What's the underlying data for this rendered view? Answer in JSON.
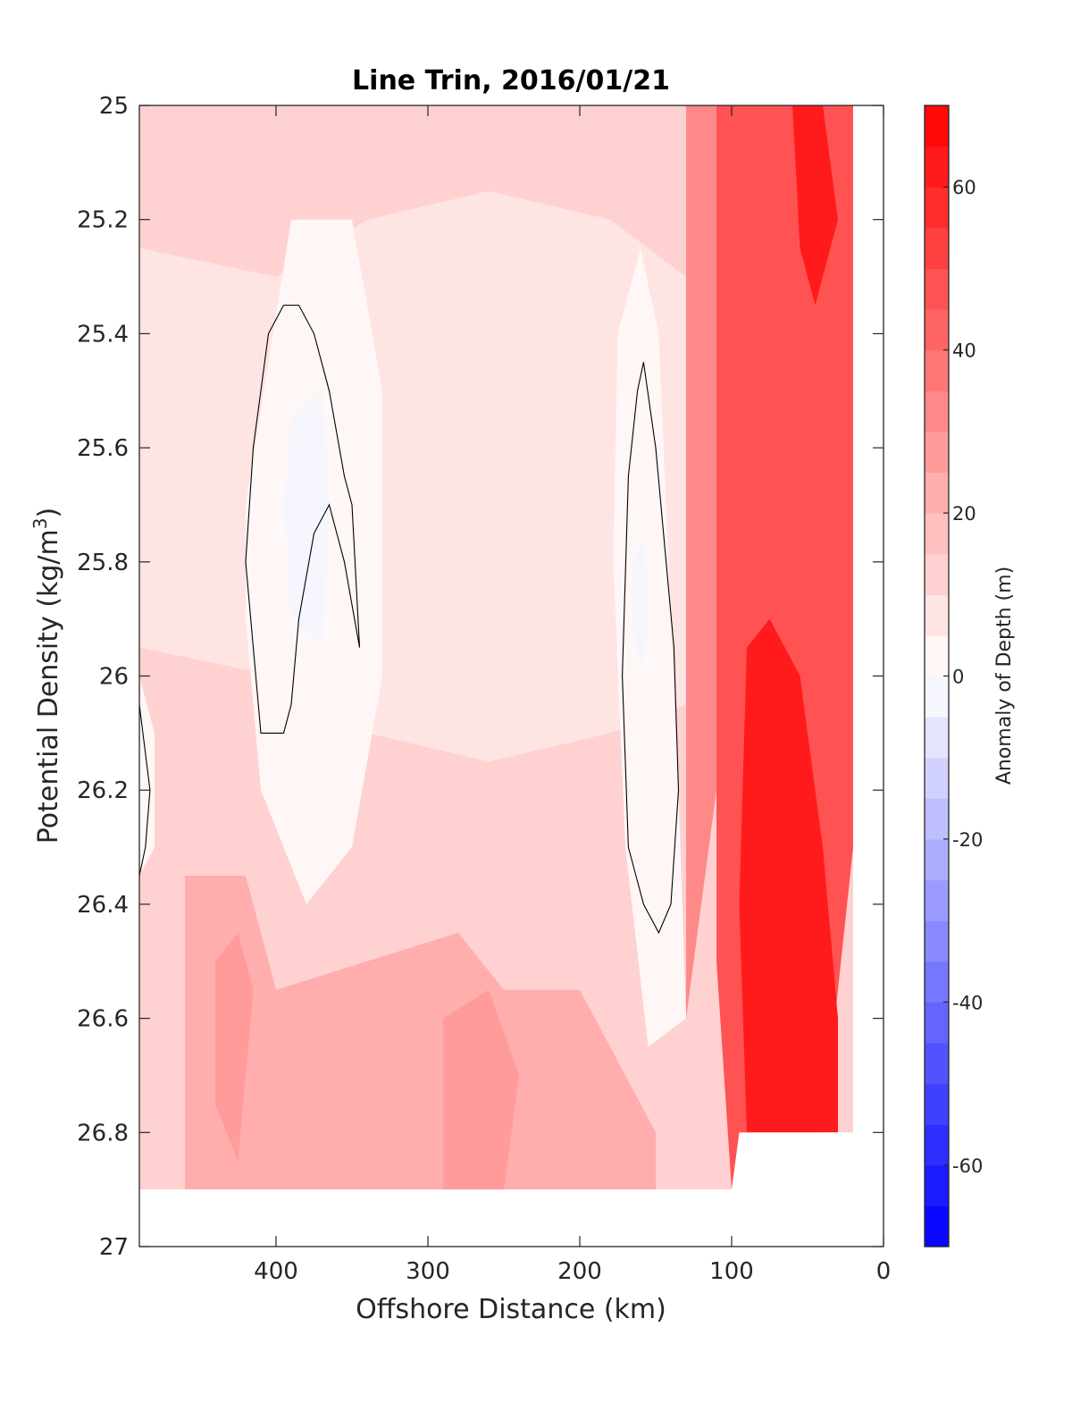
{
  "chart_data": {
    "type": "heatmap",
    "subtype": "filled-contour",
    "title": "Line Trin, 2016/01/21",
    "xlabel": "Offshore Distance (km)",
    "ylabel": "Potential Density (kg/m³)",
    "ylabel_parts": {
      "main": "Potential Density (kg/m",
      "sup": "3",
      "tail": ")"
    },
    "colorbar_label": "Anomaly of Depth (m)",
    "xlim": [
      490,
      0
    ],
    "x_reversed": true,
    "ylim": [
      25,
      27
    ],
    "y_reversed": true,
    "clim": [
      -70,
      70
    ],
    "contour_step": 5,
    "xticks": [
      400,
      300,
      200,
      100,
      0
    ],
    "yticks": [
      25,
      25.2,
      25.4,
      25.6,
      25.8,
      26,
      26.2,
      26.4,
      26.6,
      26.8,
      27
    ],
    "xtick_labels": [
      "400",
      "300",
      "200",
      "100",
      "0"
    ],
    "ytick_labels": [
      "25",
      "25.2",
      "25.4",
      "25.6",
      "25.8",
      "26",
      "26.2",
      "26.4",
      "26.6",
      "26.8",
      "27"
    ],
    "colorbar_ticks": [
      60,
      40,
      20,
      0,
      -20,
      -40,
      -60
    ],
    "colorbar_tick_labels": [
      "60",
      "40",
      "20",
      "0",
      "-20",
      "-40",
      "-60"
    ],
    "colormap": {
      "low": "#0000ff",
      "mid": "#ffffff",
      "high": "#ff0000"
    },
    "colors": {
      "axis": "#262626",
      "zero_contour": "#000000"
    },
    "grid": false,
    "data_extent": {
      "x_max": 490,
      "x_min": 20,
      "y_bottom_offshore": 26.9,
      "y_bottom_nearshore": 26.8
    },
    "regions": [
      {
        "x": [
          490,
          20,
          20,
          490
        ],
        "y": [
          25,
          25,
          26.9,
          26.9
        ],
        "value": 12
      },
      {
        "x": [
          490,
          400,
          340,
          260,
          180,
          130,
          130,
          180,
          260,
          340,
          400,
          490
        ],
        "y": [
          25.25,
          25.3,
          25.2,
          25.15,
          25.2,
          25.3,
          26.05,
          26.1,
          26.15,
          26.1,
          26.0,
          25.95
        ],
        "value": 8
      },
      {
        "x": [
          420,
          390,
          350,
          330,
          330,
          350,
          380,
          410,
          420
        ],
        "y": [
          25.7,
          25.2,
          25.2,
          25.5,
          26.0,
          26.3,
          26.4,
          26.2,
          25.9
        ],
        "value": 2
      },
      {
        "x": [
          390,
          370,
          365,
          370,
          390,
          395
        ],
        "y": [
          25.55,
          25.5,
          25.7,
          25.95,
          25.9,
          25.7
        ],
        "value": -3
      },
      {
        "x": [
          175,
          160,
          148,
          140,
          135,
          130,
          155,
          170,
          178
        ],
        "y": [
          25.4,
          25.25,
          25.4,
          25.9,
          26.2,
          26.6,
          26.65,
          26.3,
          25.8
        ],
        "value": 2
      },
      {
        "x": [
          165,
          158,
          155,
          160,
          165
        ],
        "y": [
          25.8,
          25.75,
          25.9,
          26.0,
          25.9
        ],
        "value": -3
      },
      {
        "x": [
          490,
          480,
          480,
          490
        ],
        "y": [
          26.0,
          26.1,
          26.3,
          26.35
        ],
        "value": 2
      },
      {
        "x": [
          130,
          100,
          90,
          110,
          130
        ],
        "y": [
          25.0,
          25.0,
          25.5,
          26.2,
          26.6
        ],
        "value": 30
      },
      {
        "x": [
          110,
          80,
          60,
          20,
          20,
          40,
          90,
          100,
          110
        ],
        "y": [
          25.0,
          25.0,
          25.0,
          25.0,
          26.3,
          26.8,
          26.8,
          26.9,
          26.5
        ],
        "value": 45
      },
      {
        "x": [
          90,
          75,
          55,
          40,
          30,
          30,
          40,
          60,
          90,
          95
        ],
        "y": [
          25.95,
          25.9,
          26.0,
          26.3,
          26.6,
          26.8,
          26.8,
          26.8,
          26.8,
          26.4
        ],
        "value": 60
      },
      {
        "x": [
          60,
          40,
          30,
          45,
          55
        ],
        "y": [
          25.0,
          25.0,
          25.2,
          25.35,
          25.25
        ],
        "value": 62
      },
      {
        "x": [
          460,
          420,
          400,
          280,
          250,
          200,
          150,
          150,
          200,
          250,
          280,
          400,
          460
        ],
        "y": [
          26.35,
          26.35,
          26.55,
          26.45,
          26.55,
          26.55,
          26.8,
          26.9,
          26.9,
          26.9,
          26.9,
          26.9,
          26.9
        ],
        "value": 22
      },
      {
        "x": [
          440,
          425,
          415,
          425,
          440
        ],
        "y": [
          26.5,
          26.45,
          26.55,
          26.85,
          26.75
        ],
        "value": 28
      },
      {
        "x": [
          290,
          260,
          240,
          250,
          290
        ],
        "y": [
          26.6,
          26.55,
          26.7,
          26.9,
          26.9
        ],
        "value": 28
      }
    ],
    "zero_contours": [
      {
        "x": [
          395,
          405,
          415,
          420,
          410,
          395,
          390,
          385,
          375,
          365,
          355,
          345,
          350,
          355,
          365,
          375,
          385,
          395
        ],
        "y": [
          25.35,
          25.4,
          25.6,
          25.8,
          26.1,
          26.1,
          26.05,
          25.9,
          25.75,
          25.7,
          25.8,
          25.95,
          25.7,
          25.65,
          25.5,
          25.4,
          25.35,
          25.35
        ]
      },
      {
        "x": [
          162,
          168,
          172,
          168,
          158,
          148,
          140,
          135,
          138,
          150,
          158,
          162
        ],
        "y": [
          25.5,
          25.65,
          26.0,
          26.3,
          26.4,
          26.45,
          26.4,
          26.2,
          25.95,
          25.6,
          25.45,
          25.5
        ]
      },
      {
        "x": [
          490,
          483,
          486,
          490
        ],
        "y": [
          26.05,
          26.2,
          26.3,
          26.35
        ]
      }
    ]
  }
}
